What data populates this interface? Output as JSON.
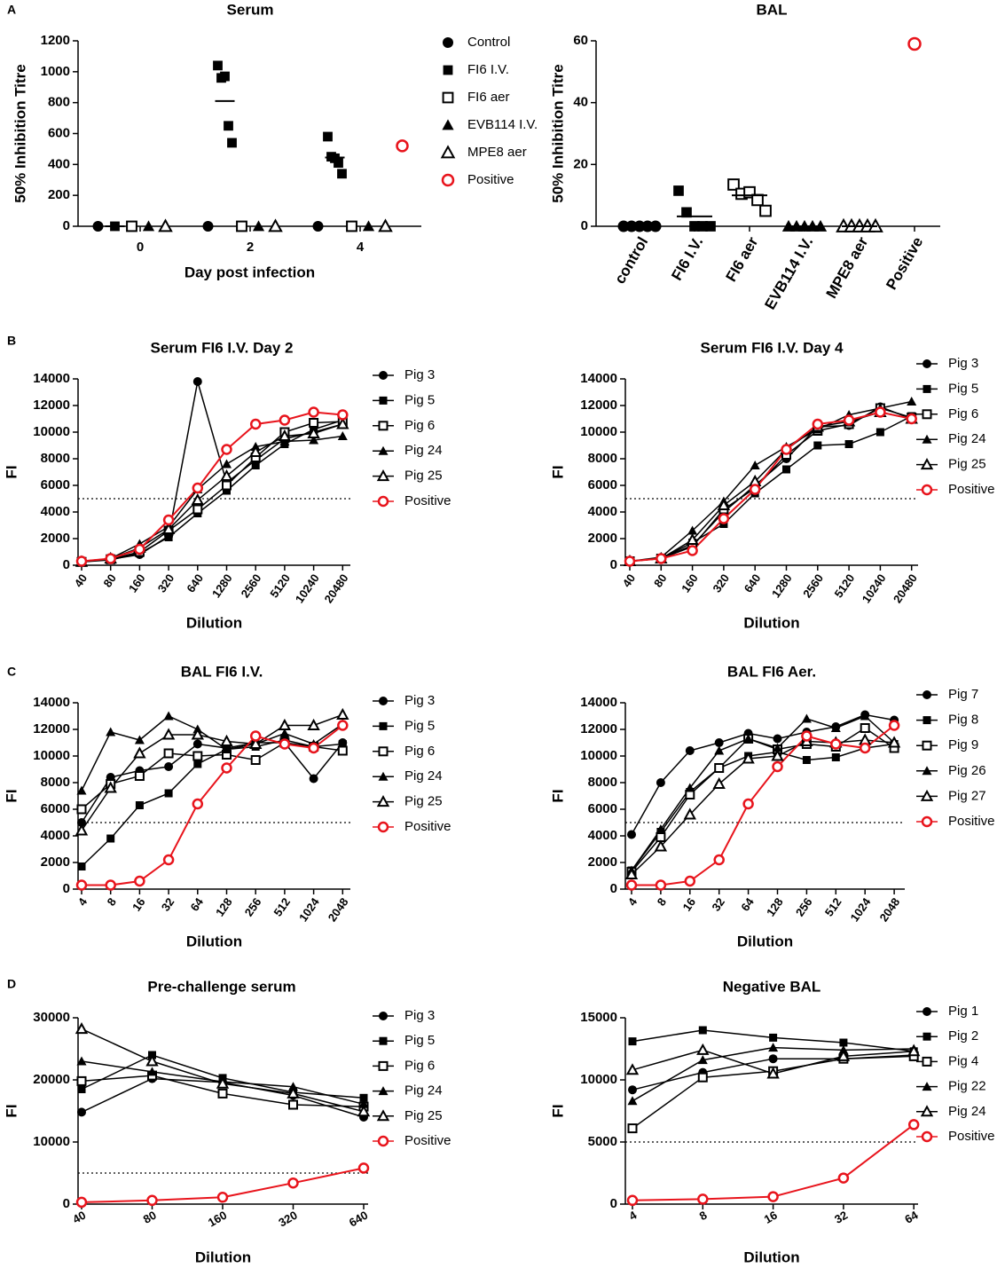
{
  "chart_data": [
    {
      "type": "dot",
      "panel": "A",
      "title": "Serum",
      "xlabel": "Day post infection",
      "ylabel": "50% Inhibition Titre",
      "categories": [
        "0",
        "2",
        "4"
      ],
      "ylim": [
        0,
        1200
      ],
      "yticks": [
        0,
        200,
        400,
        600,
        800,
        1000,
        1200
      ],
      "series": [
        {
          "name": "Control",
          "marker": "circle",
          "color": "#000000",
          "values": [
            [
              0
            ],
            [
              0
            ],
            [
              0
            ]
          ]
        },
        {
          "name": "FI6 I.V.",
          "marker": "square",
          "color": "#000000",
          "values": [
            [
              0
            ],
            [
              1040,
              960,
              970,
              650,
              540
            ],
            [
              580,
              450,
              440,
              410,
              340
            ]
          ],
          "means": [
            0,
            810,
            445
          ]
        },
        {
          "name": "FI6 aer",
          "marker": "square-open",
          "color": "#000000",
          "values": [
            [
              0
            ],
            [
              0
            ],
            [
              0
            ]
          ]
        },
        {
          "name": "EVB114 I.V.",
          "marker": "triangle",
          "color": "#000000",
          "values": [
            [
              0
            ],
            [
              0
            ],
            [
              0
            ]
          ]
        },
        {
          "name": "MPE8 aer",
          "marker": "triangle-open",
          "color": "#000000",
          "values": [
            [
              0
            ],
            [
              0
            ],
            [
              0
            ]
          ]
        },
        {
          "name": "Positive",
          "marker": "circle-open",
          "color": "#e8141c",
          "values": [
            [],
            [],
            [
              520
            ]
          ]
        }
      ]
    },
    {
      "type": "dot-categories",
      "title": "BAL",
      "ylabel": "50% Inhibition Titre",
      "categories": [
        "control",
        "FI6 I.V.",
        "FI6 aer",
        "EVB114 I.V.",
        "MPE8 aer",
        "Positive"
      ],
      "markers": [
        "circle",
        "square",
        "square-open",
        "triangle",
        "triangle-open",
        "circle-open"
      ],
      "colors": [
        "#000000",
        "#000000",
        "#000000",
        "#000000",
        "#000000",
        "#e8141c"
      ],
      "ylim": [
        0,
        60
      ],
      "yticks": [
        0,
        20,
        40,
        60
      ],
      "values": [
        [
          0,
          0,
          0,
          0,
          0
        ],
        [
          11.5,
          4.5,
          0,
          0,
          0
        ],
        [
          13.5,
          10.5,
          11,
          8.5,
          5
        ],
        [
          0,
          0,
          0,
          0,
          0
        ],
        [
          0,
          0,
          0,
          0,
          0
        ],
        [
          59
        ]
      ],
      "means": [
        0,
        3.2,
        10,
        0,
        0,
        null
      ]
    },
    {
      "type": "line",
      "panel": "B",
      "title": "Serum FI6 I.V. Day 2",
      "xlabel": "Dilution",
      "ylabel": "FI",
      "categories": [
        "40",
        "80",
        "160",
        "320",
        "640",
        "1280",
        "2560",
        "5120",
        "10240",
        "20480"
      ],
      "ylim": [
        0,
        14000
      ],
      "yticks": [
        0,
        2000,
        4000,
        6000,
        8000,
        10000,
        12000,
        14000
      ],
      "threshold": 5000,
      "series": [
        {
          "name": "Pig 3",
          "marker": "circle",
          "color": "#000000",
          "values": [
            300,
            450,
            800,
            2200,
            13800,
            6200,
            7900,
            9500,
            10000,
            10600
          ]
        },
        {
          "name": "Pig 5",
          "marker": "square",
          "color": "#000000",
          "values": [
            250,
            400,
            900,
            2100,
            3900,
            5600,
            7500,
            9100,
            10200,
            10900
          ]
        },
        {
          "name": "Pig 6",
          "marker": "square-open",
          "color": "#000000",
          "values": [
            250,
            450,
            1000,
            2600,
            4200,
            6000,
            8100,
            10000,
            10700,
            10800
          ]
        },
        {
          "name": "Pig 24",
          "marker": "triangle",
          "color": "#000000",
          "values": [
            300,
            500,
            1600,
            2900,
            5700,
            7600,
            8900,
            9300,
            9400,
            9700
          ]
        },
        {
          "name": "Pig 25",
          "marker": "triangle-open",
          "color": "#000000",
          "values": [
            250,
            500,
            1300,
            2700,
            4900,
            6700,
            8500,
            9700,
            9900,
            10600
          ]
        },
        {
          "name": "Positive",
          "marker": "circle-open",
          "color": "#e8141c",
          "values": [
            300,
            500,
            1200,
            3400,
            5800,
            8700,
            10600,
            10900,
            11500,
            11300
          ]
        }
      ]
    },
    {
      "type": "line",
      "title": "Serum FI6 I.V. Day 4",
      "xlabel": "Dilution",
      "ylabel": "FI",
      "categories": [
        "40",
        "80",
        "160",
        "320",
        "640",
        "1280",
        "2560",
        "5120",
        "10240",
        "20480"
      ],
      "ylim": [
        0,
        14000
      ],
      "yticks": [
        0,
        2000,
        4000,
        6000,
        8000,
        10000,
        12000,
        14000
      ],
      "threshold": 5000,
      "series": [
        {
          "name": "Pig 3",
          "marker": "circle",
          "color": "#000000",
          "values": [
            300,
            500,
            1500,
            4000,
            6000,
            8000,
            10400,
            10500,
            11900,
            11000
          ]
        },
        {
          "name": "Pig 5",
          "marker": "square",
          "color": "#000000",
          "values": [
            300,
            500,
            1700,
            3100,
            5400,
            7200,
            9000,
            9100,
            10000,
            11200
          ]
        },
        {
          "name": "Pig 6",
          "marker": "square-open",
          "color": "#000000",
          "values": [
            300,
            500,
            1400,
            4200,
            5800,
            8300,
            10100,
            10600,
            11800,
            11100
          ]
        },
        {
          "name": "Pig 24",
          "marker": "triangle",
          "color": "#000000",
          "values": [
            300,
            600,
            2600,
            4800,
            7500,
            8900,
            10200,
            11300,
            11800,
            12300
          ]
        },
        {
          "name": "Pig 25",
          "marker": "triangle-open",
          "color": "#000000",
          "values": [
            300,
            500,
            1900,
            4500,
            6300,
            8700,
            10400,
            10800,
            11500,
            11000
          ]
        },
        {
          "name": "Positive",
          "marker": "circle-open",
          "color": "#e8141c",
          "values": [
            300,
            500,
            1100,
            3500,
            5700,
            8700,
            10600,
            10900,
            11500,
            11000
          ]
        }
      ]
    },
    {
      "type": "line",
      "panel": "C",
      "title": "BAL FI6 I.V.",
      "xlabel": "Dilution",
      "ylabel": "FI",
      "categories": [
        "4",
        "8",
        "16",
        "32",
        "64",
        "128",
        "256",
        "512",
        "1024",
        "2048"
      ],
      "ylim": [
        0,
        14000
      ],
      "yticks": [
        0,
        2000,
        4000,
        6000,
        8000,
        10000,
        12000,
        14000
      ],
      "threshold": 5000,
      "series": [
        {
          "name": "Pig 3",
          "marker": "circle",
          "color": "#000000",
          "values": [
            5000,
            8400,
            8900,
            9200,
            10900,
            10600,
            11000,
            11000,
            8300,
            11000
          ]
        },
        {
          "name": "Pig 5",
          "marker": "square",
          "color": "#000000",
          "values": [
            1700,
            3800,
            6300,
            7200,
            9400,
            10500,
            10700,
            11200,
            10700,
            10900
          ]
        },
        {
          "name": "Pig 6",
          "marker": "square-open",
          "color": "#000000",
          "values": [
            6000,
            7900,
            8500,
            10200,
            10000,
            10100,
            9700,
            11000,
            10700,
            10400
          ]
        },
        {
          "name": "Pig 24",
          "marker": "triangle",
          "color": "#000000",
          "values": [
            7400,
            11800,
            11200,
            13000,
            12000,
            10500,
            10900,
            11700,
            10900,
            12400
          ]
        },
        {
          "name": "Pig 25",
          "marker": "triangle-open",
          "color": "#000000",
          "values": [
            4400,
            7600,
            10200,
            11600,
            11600,
            11100,
            10900,
            12300,
            12300,
            13100
          ]
        },
        {
          "name": "Positive",
          "marker": "circle-open",
          "color": "#e8141c",
          "values": [
            300,
            300,
            600,
            2200,
            6400,
            9100,
            11500,
            10900,
            10600,
            12300
          ]
        }
      ]
    },
    {
      "type": "line",
      "title": "BAL FI6 Aer.",
      "xlabel": "Dilution",
      "ylabel": "FI",
      "categories": [
        "4",
        "8",
        "16",
        "32",
        "64",
        "128",
        "256",
        "512",
        "1024",
        "2048"
      ],
      "ylim": [
        0,
        14000
      ],
      "yticks": [
        0,
        2000,
        4000,
        6000,
        8000,
        10000,
        12000,
        14000
      ],
      "threshold": 5000,
      "series": [
        {
          "name": "Pig 7",
          "marker": "circle",
          "color": "#000000",
          "values": [
            4100,
            8000,
            10400,
            11000,
            11700,
            11300,
            11800,
            12200,
            13100,
            12700
          ]
        },
        {
          "name": "Pig 8",
          "marker": "square",
          "color": "#000000",
          "values": [
            1400,
            4300,
            7300,
            9100,
            10000,
            10300,
            9700,
            9900,
            10600,
            10900
          ]
        },
        {
          "name": "Pig 9",
          "marker": "square-open",
          "color": "#000000",
          "values": [
            1300,
            3900,
            7100,
            9100,
            11300,
            10500,
            10900,
            10700,
            12100,
            10600
          ]
        },
        {
          "name": "Pig 26",
          "marker": "triangle",
          "color": "#000000",
          "values": [
            1400,
            4500,
            7600,
            10400,
            11300,
            10600,
            12800,
            12100,
            13000,
            11000
          ]
        },
        {
          "name": "Pig 27",
          "marker": "triangle-open",
          "color": "#000000",
          "values": [
            1100,
            3200,
            5600,
            7900,
            9800,
            10000,
            11100,
            11000,
            11200,
            11000
          ]
        },
        {
          "name": "Positive",
          "marker": "circle-open",
          "color": "#e8141c",
          "values": [
            300,
            300,
            600,
            2200,
            6400,
            9200,
            11500,
            10900,
            10600,
            12300
          ]
        }
      ]
    },
    {
      "type": "line",
      "panel": "D",
      "title": "Pre-challenge serum",
      "xlabel": "Dilution",
      "ylabel": "FI",
      "categories": [
        "40",
        "80",
        "160",
        "320",
        "640"
      ],
      "ylim": [
        0,
        30000
      ],
      "yticks": [
        0,
        10000,
        20000,
        30000
      ],
      "threshold": 5000,
      "series": [
        {
          "name": "Pig 3",
          "marker": "circle",
          "color": "#000000",
          "values": [
            14800,
            20200,
            19600,
            17500,
            14000
          ]
        },
        {
          "name": "Pig 5",
          "marker": "square",
          "color": "#000000",
          "values": [
            18500,
            24000,
            20300,
            18000,
            17100
          ]
        },
        {
          "name": "Pig 6",
          "marker": "square-open",
          "color": "#000000",
          "values": [
            19800,
            20700,
            17800,
            16000,
            15700
          ]
        },
        {
          "name": "Pig 24",
          "marker": "triangle",
          "color": "#000000",
          "values": [
            23000,
            21300,
            19700,
            18900,
            16100
          ]
        },
        {
          "name": "Pig 25",
          "marker": "triangle-open",
          "color": "#000000",
          "values": [
            28200,
            23000,
            19400,
            17800,
            14900
          ]
        },
        {
          "name": "Positive",
          "marker": "circle-open",
          "color": "#e8141c",
          "values": [
            300,
            600,
            1100,
            3400,
            5800
          ]
        }
      ]
    },
    {
      "type": "line",
      "title": "Negative BAL",
      "xlabel": "Dilution",
      "ylabel": "FI",
      "categories": [
        "4",
        "8",
        "16",
        "32",
        "64"
      ],
      "ylim": [
        0,
        15000
      ],
      "yticks": [
        0,
        5000,
        10000,
        15000
      ],
      "threshold": 5000,
      "series": [
        {
          "name": "Pig 1",
          "marker": "circle",
          "color": "#000000",
          "values": [
            9200,
            10600,
            11700,
            11700,
            12000
          ]
        },
        {
          "name": "Pig 2",
          "marker": "square",
          "color": "#000000",
          "values": [
            13100,
            14000,
            13400,
            13000,
            12300
          ]
        },
        {
          "name": "Pig 4",
          "marker": "square-open",
          "color": "#000000",
          "values": [
            6100,
            10200,
            10700,
            11700,
            11900
          ]
        },
        {
          "name": "Pig 22",
          "marker": "triangle",
          "color": "#000000",
          "values": [
            8300,
            11600,
            12600,
            12400,
            12500
          ]
        },
        {
          "name": "Pig 24",
          "marker": "triangle-open",
          "color": "#000000",
          "values": [
            10800,
            12400,
            10500,
            11900,
            12300
          ]
        },
        {
          "name": "Positive",
          "marker": "circle-open",
          "color": "#e8141c",
          "values": [
            300,
            400,
            600,
            2100,
            6400
          ]
        }
      ]
    }
  ]
}
